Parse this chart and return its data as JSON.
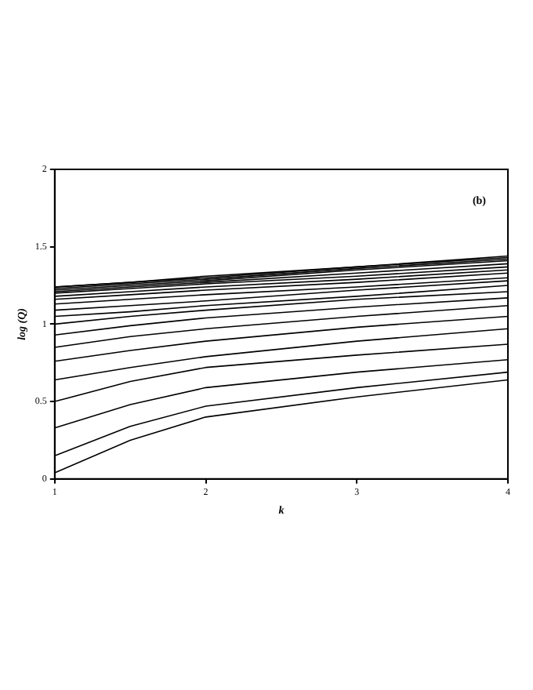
{
  "chart_data": {
    "type": "line",
    "ylabel": "log (Q)",
    "xlabel": "k",
    "annotations": [
      "(b)"
    ],
    "x": [
      1,
      1.5,
      2,
      3,
      4
    ],
    "xlim": [
      1,
      4
    ],
    "xticks": [
      1,
      2,
      3,
      4
    ],
    "ylim": [
      0,
      2
    ],
    "yticks": [
      0,
      0.5,
      1,
      1.5,
      2
    ],
    "grid": false,
    "legend": false,
    "marker": "none",
    "line_style": "solid",
    "series": [
      {
        "color": "#000000",
        "values": [
          0.04,
          0.25,
          0.4,
          0.53,
          0.64
        ]
      },
      {
        "color": "#000000",
        "values": [
          0.15,
          0.34,
          0.47,
          0.59,
          0.69
        ]
      },
      {
        "color": "#000000",
        "values": [
          0.33,
          0.48,
          0.59,
          0.69,
          0.77
        ]
      },
      {
        "color": "#000000",
        "values": [
          0.5,
          0.63,
          0.72,
          0.8,
          0.87
        ]
      },
      {
        "color": "#000000",
        "values": [
          0.64,
          0.72,
          0.79,
          0.89,
          0.97
        ]
      },
      {
        "color": "#000000",
        "values": [
          0.76,
          0.83,
          0.89,
          0.98,
          1.05
        ]
      },
      {
        "color": "#000000",
        "values": [
          0.85,
          0.92,
          0.97,
          1.05,
          1.12
        ]
      },
      {
        "color": "#000000",
        "values": [
          0.93,
          0.99,
          1.04,
          1.11,
          1.17
        ]
      },
      {
        "color": "#000000",
        "values": [
          1.0,
          1.05,
          1.09,
          1.16,
          1.21
        ]
      },
      {
        "color": "#000000",
        "values": [
          1.05,
          1.08,
          1.12,
          1.18,
          1.25
        ]
      },
      {
        "color": "#000000",
        "values": [
          1.09,
          1.12,
          1.15,
          1.22,
          1.28
        ]
      },
      {
        "color": "#000000",
        "values": [
          1.13,
          1.16,
          1.19,
          1.24,
          1.3
        ]
      },
      {
        "color": "#000000",
        "values": [
          1.16,
          1.19,
          1.22,
          1.27,
          1.33
        ]
      },
      {
        "color": "#000000",
        "values": [
          1.18,
          1.21,
          1.24,
          1.29,
          1.35
        ]
      },
      {
        "color": "#000000",
        "values": [
          1.2,
          1.23,
          1.26,
          1.31,
          1.37
        ]
      },
      {
        "color": "#000000",
        "values": [
          1.21,
          1.24,
          1.27,
          1.33,
          1.39
        ]
      },
      {
        "color": "#000000",
        "values": [
          1.22,
          1.25,
          1.28,
          1.35,
          1.41
        ]
      },
      {
        "color": "#000000",
        "values": [
          1.23,
          1.26,
          1.29,
          1.36,
          1.42
        ]
      },
      {
        "color": "#000000",
        "values": [
          1.24,
          1.27,
          1.3,
          1.37,
          1.43
        ]
      },
      {
        "color": "#000000",
        "values": [
          1.24,
          1.27,
          1.31,
          1.37,
          1.44
        ]
      }
    ]
  }
}
